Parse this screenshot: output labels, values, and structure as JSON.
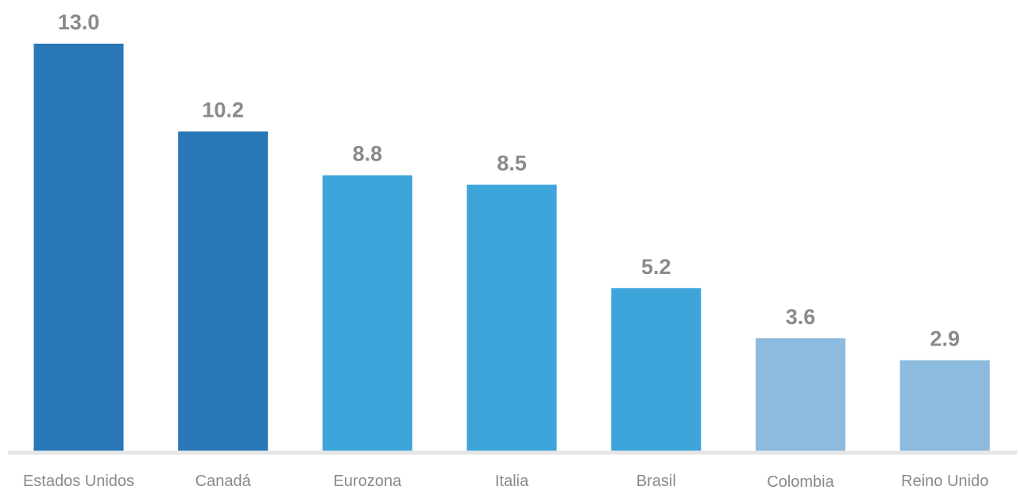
{
  "chart_data": {
    "type": "bar",
    "categories": [
      "Estados Unidos",
      "Canadá",
      "Eurozona",
      "Italia",
      "Brasil",
      "Colombia",
      "Reino Unido"
    ],
    "values": [
      13.0,
      10.2,
      8.8,
      8.5,
      5.2,
      3.6,
      2.9
    ],
    "value_labels": [
      "13.0",
      "10.2",
      "8.8",
      "8.5",
      "5.2",
      "3.6",
      "2.9"
    ],
    "colors": [
      "#2a78b8",
      "#2a78b8",
      "#3ea5db",
      "#3ea5db",
      "#3ea5db",
      "#8dbbdf",
      "#8dbbdf"
    ],
    "axis_color": "#e6e6e6",
    "label_color": "#8a8a8a",
    "title": "",
    "xlabel": "",
    "ylabel": "",
    "ylim": [
      0,
      13.0
    ],
    "grid": false,
    "legend": "none",
    "show_data_labels": true
  }
}
